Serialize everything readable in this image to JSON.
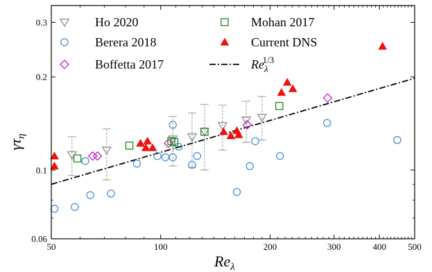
{
  "chart_data": {
    "type": "scatter",
    "xlabel_main": "Re",
    "xlabel_sub": "λ",
    "ylabel_main": "γτ",
    "ylabel_sub": "η",
    "xscale": "log",
    "yscale": "log",
    "xlim": [
      50,
      500
    ],
    "ylim": [
      0.06,
      0.34
    ],
    "x_ticks": [
      50,
      100,
      200,
      300,
      400,
      500
    ],
    "x_tick_labels": [
      "50",
      "100",
      "200",
      "300",
      "400",
      "500"
    ],
    "y_ticks": [
      0.06,
      0.1,
      0.2,
      0.3
    ],
    "y_tick_labels": [
      "0.06",
      "0.1",
      "0.2",
      "0.3"
    ],
    "grid": false,
    "legend_position": "top",
    "series": [
      {
        "name": "Ho 2020",
        "marker": "triangle-down-open",
        "color": "#8c8c8c",
        "points": [
          [
            57,
            0.112,
            0.096,
            0.128
          ],
          [
            71,
            0.116,
            0.093,
            0.136
          ],
          [
            108,
            0.126,
            0.103,
            0.149
          ],
          [
            122,
            0.128,
            0.102,
            0.153
          ],
          [
            132,
            0.133,
            0.1,
            0.163
          ],
          [
            148,
            0.139,
            0.116,
            0.162
          ],
          [
            172,
            0.145,
            0.123,
            0.167
          ],
          [
            190,
            0.148,
            0.125,
            0.173
          ]
        ]
      },
      {
        "name": "Berera 2018",
        "marker": "circle-open",
        "color": "#4a90d0",
        "points": [
          [
            51,
            0.075
          ],
          [
            58,
            0.076
          ],
          [
            62,
            0.107
          ],
          [
            64,
            0.083
          ],
          [
            73,
            0.084
          ],
          [
            86,
            0.105
          ],
          [
            98,
            0.111
          ],
          [
            103,
            0.11
          ],
          [
            108,
            0.11
          ],
          [
            108,
            0.14
          ],
          [
            112,
            0.119
          ],
          [
            122,
            0.104
          ],
          [
            126,
            0.111
          ],
          [
            162,
            0.085
          ],
          [
            176,
            0.103
          ],
          [
            182,
            0.124
          ],
          [
            213,
            0.111
          ],
          [
            287,
            0.142
          ],
          [
            448,
            0.125
          ]
        ]
      },
      {
        "name": "Boffetta 2017",
        "marker": "diamond-open",
        "color": "#c020c0",
        "points": [
          [
            65,
            0.111
          ],
          [
            67,
            0.111
          ],
          [
            105,
            0.122
          ],
          [
            173,
            0.14
          ],
          [
            288,
            0.171
          ]
        ]
      },
      {
        "name": "Mohan 2017",
        "marker": "square-open",
        "color": "#1a8a1a",
        "points": [
          [
            59,
            0.109
          ],
          [
            82,
            0.12
          ],
          [
            107,
            0.124
          ],
          [
            109,
            0.123
          ],
          [
            132,
            0.133
          ],
          [
            212,
            0.161
          ]
        ]
      },
      {
        "name": "Current DNS",
        "marker": "triangle-up-filled",
        "color": "#ee1111",
        "points": [
          [
            51,
            0.103
          ],
          [
            51,
            0.111
          ],
          [
            88,
            0.122
          ],
          [
            91,
            0.118
          ],
          [
            92,
            0.124
          ],
          [
            95,
            0.118
          ],
          [
            149,
            0.133
          ],
          [
            156,
            0.129
          ],
          [
            162,
            0.134
          ],
          [
            164,
            0.13
          ],
          [
            215,
            0.178
          ],
          [
            223,
            0.192
          ],
          [
            231,
            0.183
          ],
          [
            408,
            0.251
          ]
        ]
      }
    ],
    "reference_line": {
      "name": "Re_λ^{1/3}",
      "label_main": "Re",
      "label_sub": "λ",
      "label_sup": "1/3",
      "style": "dash-dot",
      "color": "#000000",
      "x_range": [
        50,
        500
      ],
      "y_at_x_min": 0.09,
      "y_at_x_max": 0.198
    },
    "legend": [
      {
        "label": "Ho 2020",
        "marker": "triangle-down-open",
        "color": "#8c8c8c"
      },
      {
        "label": "Berera 2018",
        "marker": "circle-open",
        "color": "#4a90d0"
      },
      {
        "label": "Boffetta 2017",
        "marker": "diamond-open",
        "color": "#c020c0"
      },
      {
        "label": "Mohan 2017",
        "marker": "square-open",
        "color": "#1a8a1a"
      },
      {
        "label": "Current DNS",
        "marker": "triangle-up-filled",
        "color": "#ee1111"
      },
      {
        "label": "dash-dot-line",
        "marker": "line",
        "color": "#000000"
      }
    ]
  }
}
